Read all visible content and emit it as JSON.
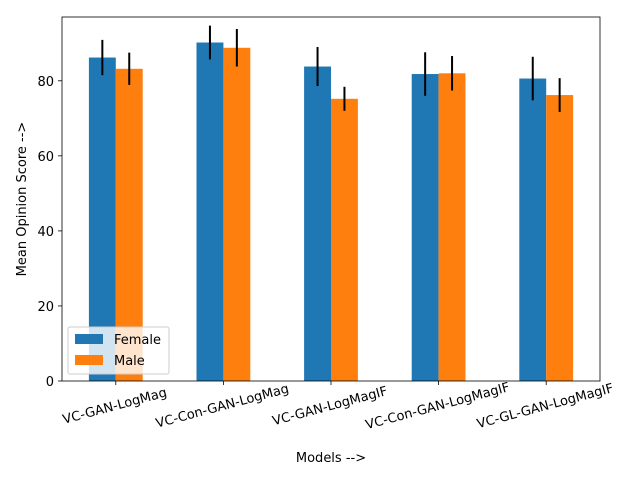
{
  "chart_data": {
    "type": "bar",
    "title": "",
    "xlabel": "Models -->",
    "ylabel": "Mean Opinion Score -->",
    "ylim": [
      0,
      97
    ],
    "yticks": [
      0,
      20,
      40,
      60,
      80
    ],
    "categories": [
      "VC-GAN-LogMag",
      "VC-Con-GAN-LogMag",
      "VC-GAN-LogMagIF",
      "VC-Con-GAN-LogMagIF",
      "VC-GL-GAN-LogMagIF"
    ],
    "series": [
      {
        "name": "Female",
        "color": "#1f77b4",
        "values": [
          86.2,
          90.2,
          83.8,
          81.8,
          80.6
        ],
        "errors": [
          4.7,
          4.5,
          5.2,
          5.8,
          5.8
        ]
      },
      {
        "name": "Male",
        "color": "#ff7f0e",
        "values": [
          83.2,
          88.8,
          75.2,
          82.0,
          76.2
        ],
        "errors": [
          4.3,
          5.0,
          3.2,
          4.6,
          4.5
        ]
      }
    ],
    "error_bar_color": "#000000",
    "legend": "lower-left",
    "grid": false,
    "xtick_rotation": 15
  }
}
